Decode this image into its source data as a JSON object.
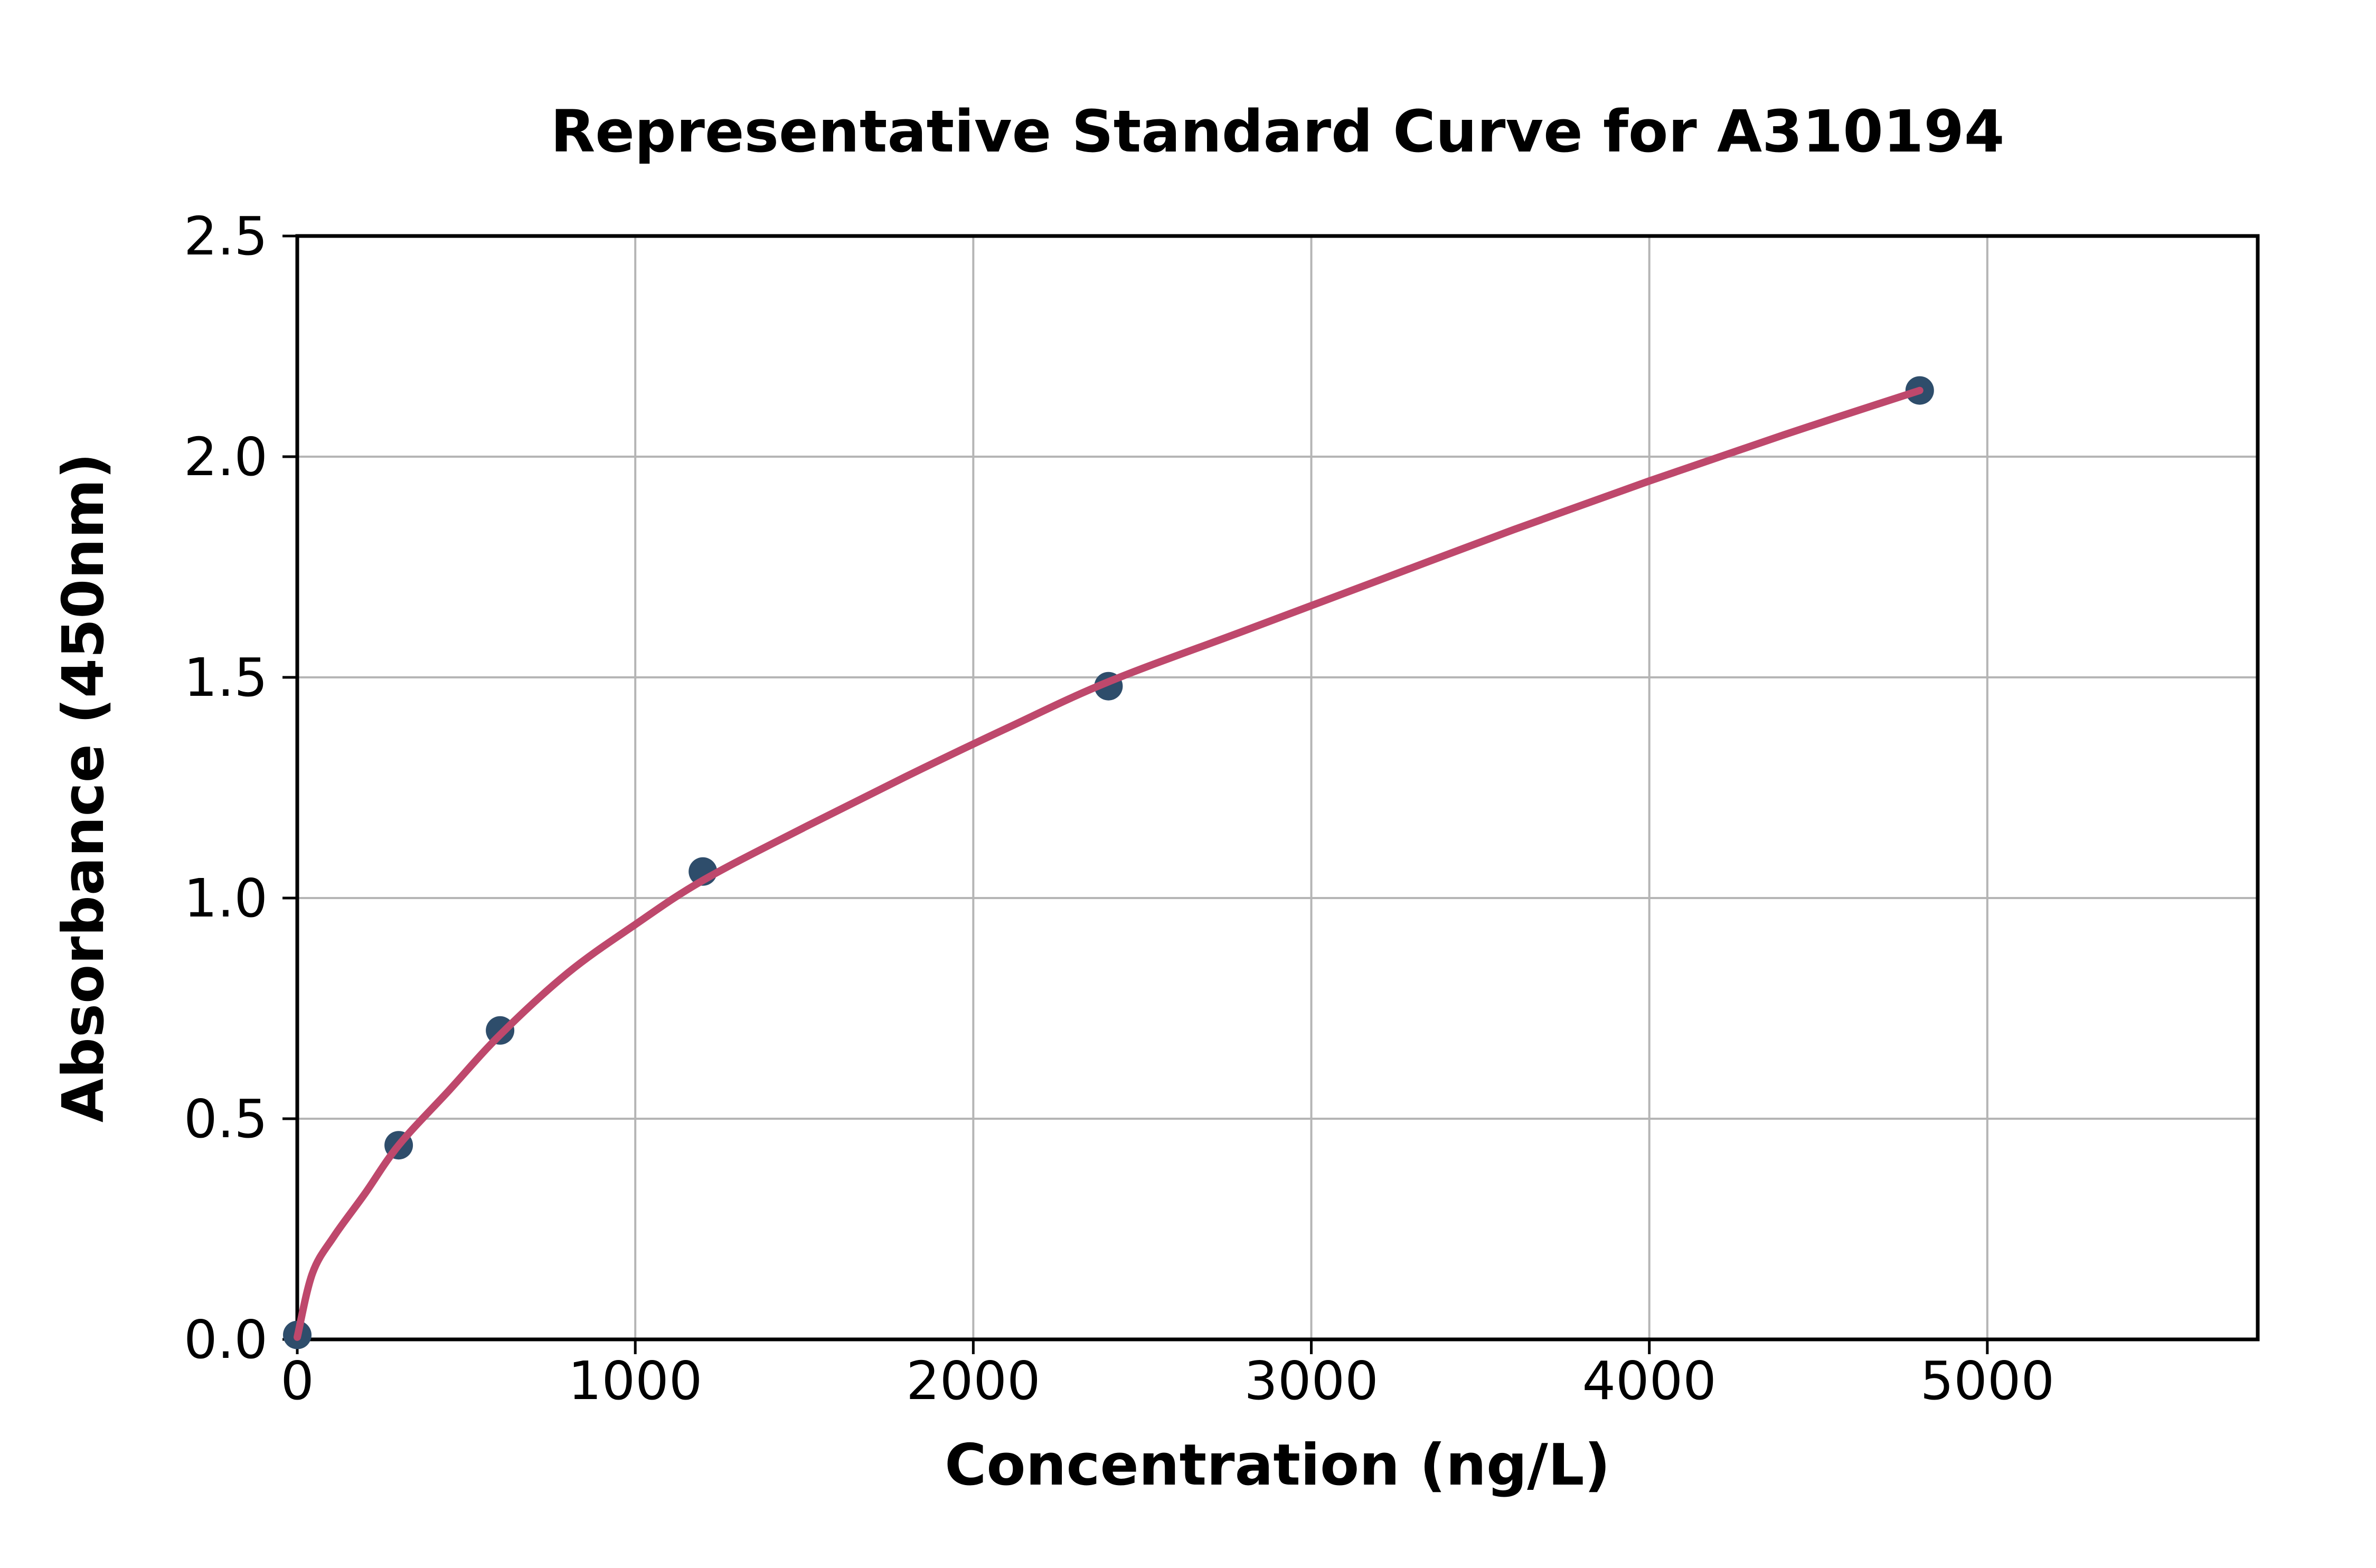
{
  "chart_data": {
    "type": "scatter",
    "title": "Representative Standard Curve for A310194",
    "xlabel": "Concentration (ng/L)",
    "ylabel": "Absorbance (450nm)",
    "xlim": [
      0,
      5800
    ],
    "ylim": [
      0,
      2.5
    ],
    "x_ticks": [
      0,
      1000,
      2000,
      3000,
      4000,
      5000
    ],
    "x_tick_labels": [
      "0",
      "1000",
      "2000",
      "3000",
      "4000",
      "5000"
    ],
    "y_ticks": [
      0,
      0.5,
      1.0,
      1.5,
      2.0,
      2.5
    ],
    "y_tick_labels": [
      "0.0",
      "0.5",
      "1.0",
      "1.5",
      "2.0",
      "2.5"
    ],
    "grid": true,
    "legend": "none",
    "series": [
      {
        "name": "standard-points",
        "type": "scatter",
        "x": [
          0,
          300,
          600,
          1200,
          2400,
          4800
        ],
        "y": [
          0.01,
          0.44,
          0.7,
          1.06,
          1.48,
          2.15
        ]
      },
      {
        "name": "fit-curve",
        "type": "line",
        "x": [
          0,
          45,
          110,
          200,
          300,
          450,
          600,
          800,
          1000,
          1200,
          1500,
          1800,
          2100,
          2400,
          2800,
          3200,
          3600,
          4000,
          4400,
          4800
        ],
        "y": [
          0.005,
          0.15,
          0.235,
          0.33,
          0.44,
          0.565,
          0.69,
          0.83,
          0.94,
          1.04,
          1.16,
          1.275,
          1.385,
          1.49,
          1.605,
          1.72,
          1.835,
          1.945,
          2.05,
          2.15
        ]
      }
    ],
    "colors": {
      "fit_curve": "#be486c",
      "points": "#2e4d6b",
      "grid": "#b5b5b5",
      "spine": "#000000",
      "text": "#000000",
      "background": "#ffffff"
    }
  }
}
